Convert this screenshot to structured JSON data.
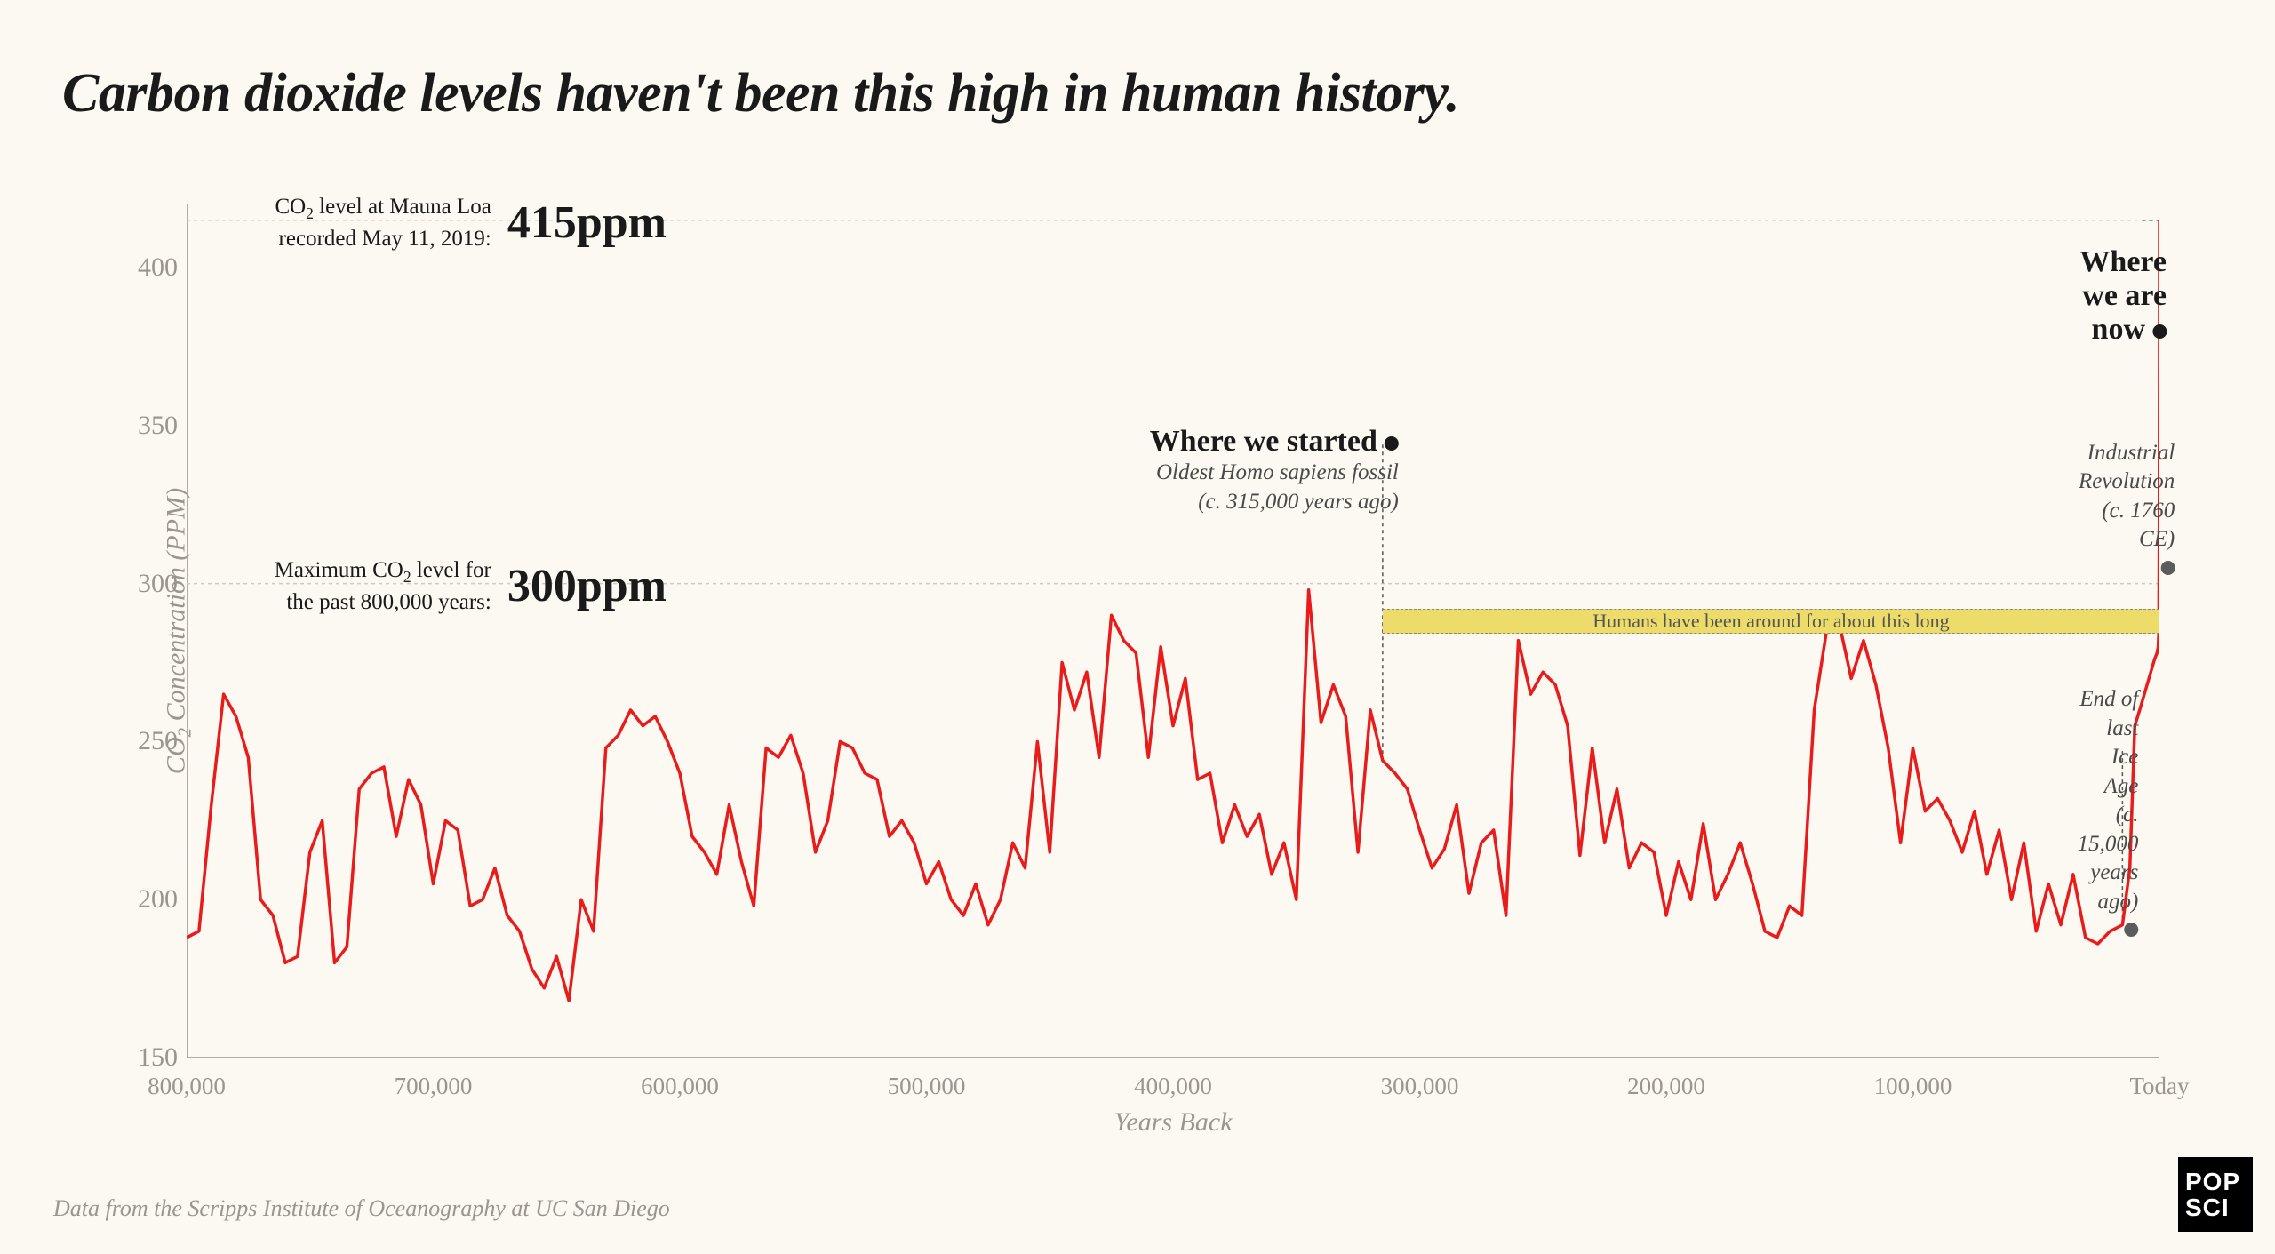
{
  "title": "Carbon dioxide levels haven't been this high in human history.",
  "footer": "Data from the Scripps Institute of Oceanography at UC San Diego",
  "logo": {
    "line1": "POP",
    "line2": "SCI"
  },
  "chart": {
    "type": "line",
    "background_color": "#fcf9f2",
    "line_color": "#e91c1c",
    "line_width": 3.5,
    "grid_color": "#cfcbc2",
    "axis_text_color": "#9a968e",
    "ylabel_html": "CO<sub>2</sub> Concentration (PPM)",
    "xlabel": "Years Back",
    "label_fontsize": 30,
    "xlim": [
      800000,
      0
    ],
    "ylim": [
      150,
      420
    ],
    "yticks": [
      150,
      200,
      250,
      300,
      350,
      400
    ],
    "xticks": [
      {
        "v": 800000,
        "label": "800,000"
      },
      {
        "v": 700000,
        "label": "700,000"
      },
      {
        "v": 600000,
        "label": "600,000"
      },
      {
        "v": 500000,
        "label": "500,000"
      },
      {
        "v": 400000,
        "label": "400,000"
      },
      {
        "v": 300000,
        "label": "300,000"
      },
      {
        "v": 200000,
        "label": "200,000"
      },
      {
        "v": 100000,
        "label": "100,000"
      },
      {
        "v": 0,
        "label": "Today"
      }
    ],
    "reference_lines": [
      {
        "y": 300,
        "dash": "4,4"
      },
      {
        "y": 415,
        "dash": "4,4"
      }
    ],
    "callouts": [
      {
        "id": "415",
        "small_html": "CO<sub>2</sub> level at Mauna Loa<br>recorded May 11, 2019:",
        "big": "415ppm",
        "y": 415
      },
      {
        "id": "300",
        "small_html": "Maximum CO<sub>2</sub> level for<br>the past 800,000 years:",
        "big": "300ppm",
        "y": 300
      }
    ],
    "annotations": {
      "started": {
        "head": "Where we started",
        "sub": "Oldest Homo sapiens fossil",
        "sub2": "(c. 315,000 years ago)",
        "x": 315000,
        "marker_y": 344,
        "line_to_y": 244
      },
      "now": {
        "head": "Where we are now",
        "x": 0,
        "marker_y": 402
      },
      "industrial": {
        "sub": "Industrial Revolution",
        "sub2": "(c. 1760 CE)",
        "x": 260,
        "marker_y": 325,
        "line_to_y": 285
      },
      "iceage": {
        "sub": "End of last Ice Age",
        "sub2": "(c. 15,000 years ago)",
        "x": 15000,
        "marker_y": 247,
        "line_to_y": 192
      }
    },
    "human_band": {
      "text": "Humans have been around for about this long",
      "x_start": 315000,
      "x_end": 0,
      "y": 288,
      "color": "#eddc6a",
      "gap_x": 56000
    },
    "series": [
      [
        800000,
        188
      ],
      [
        795000,
        190
      ],
      [
        790000,
        230
      ],
      [
        785000,
        265
      ],
      [
        780000,
        258
      ],
      [
        775000,
        245
      ],
      [
        770000,
        200
      ],
      [
        765000,
        195
      ],
      [
        760000,
        180
      ],
      [
        755000,
        182
      ],
      [
        750000,
        215
      ],
      [
        745000,
        225
      ],
      [
        740000,
        180
      ],
      [
        735000,
        185
      ],
      [
        730000,
        235
      ],
      [
        725000,
        240
      ],
      [
        720000,
        242
      ],
      [
        715000,
        220
      ],
      [
        710000,
        238
      ],
      [
        705000,
        230
      ],
      [
        700000,
        205
      ],
      [
        695000,
        225
      ],
      [
        690000,
        222
      ],
      [
        685000,
        198
      ],
      [
        680000,
        200
      ],
      [
        675000,
        210
      ],
      [
        670000,
        195
      ],
      [
        665000,
        190
      ],
      [
        660000,
        178
      ],
      [
        655000,
        172
      ],
      [
        650000,
        182
      ],
      [
        645000,
        168
      ],
      [
        640000,
        200
      ],
      [
        635000,
        190
      ],
      [
        630000,
        248
      ],
      [
        625000,
        252
      ],
      [
        620000,
        260
      ],
      [
        615000,
        255
      ],
      [
        610000,
        258
      ],
      [
        605000,
        250
      ],
      [
        600000,
        240
      ],
      [
        595000,
        220
      ],
      [
        590000,
        215
      ],
      [
        585000,
        208
      ],
      [
        580000,
        230
      ],
      [
        575000,
        212
      ],
      [
        570000,
        198
      ],
      [
        565000,
        248
      ],
      [
        560000,
        245
      ],
      [
        555000,
        252
      ],
      [
        550000,
        240
      ],
      [
        545000,
        215
      ],
      [
        540000,
        225
      ],
      [
        535000,
        250
      ],
      [
        530000,
        248
      ],
      [
        525000,
        240
      ],
      [
        520000,
        238
      ],
      [
        515000,
        220
      ],
      [
        510000,
        225
      ],
      [
        505000,
        218
      ],
      [
        500000,
        205
      ],
      [
        495000,
        212
      ],
      [
        490000,
        200
      ],
      [
        485000,
        195
      ],
      [
        480000,
        205
      ],
      [
        475000,
        192
      ],
      [
        470000,
        200
      ],
      [
        465000,
        218
      ],
      [
        460000,
        210
      ],
      [
        455000,
        250
      ],
      [
        450000,
        215
      ],
      [
        445000,
        275
      ],
      [
        440000,
        260
      ],
      [
        435000,
        272
      ],
      [
        430000,
        245
      ],
      [
        425000,
        290
      ],
      [
        420000,
        282
      ],
      [
        415000,
        278
      ],
      [
        410000,
        245
      ],
      [
        405000,
        280
      ],
      [
        400000,
        255
      ],
      [
        395000,
        270
      ],
      [
        390000,
        238
      ],
      [
        385000,
        240
      ],
      [
        380000,
        218
      ],
      [
        375000,
        230
      ],
      [
        370000,
        220
      ],
      [
        365000,
        227
      ],
      [
        360000,
        208
      ],
      [
        355000,
        218
      ],
      [
        350000,
        200
      ],
      [
        345000,
        298
      ],
      [
        340000,
        256
      ],
      [
        335000,
        268
      ],
      [
        330000,
        258
      ],
      [
        325000,
        215
      ],
      [
        320000,
        260
      ],
      [
        315000,
        244
      ],
      [
        310000,
        240
      ],
      [
        305000,
        235
      ],
      [
        300000,
        222
      ],
      [
        295000,
        210
      ],
      [
        290000,
        216
      ],
      [
        285000,
        230
      ],
      [
        280000,
        202
      ],
      [
        275000,
        218
      ],
      [
        270000,
        222
      ],
      [
        265000,
        195
      ],
      [
        260000,
        282
      ],
      [
        255000,
        265
      ],
      [
        250000,
        272
      ],
      [
        245000,
        268
      ],
      [
        240000,
        255
      ],
      [
        235000,
        214
      ],
      [
        230000,
        248
      ],
      [
        225000,
        218
      ],
      [
        220000,
        235
      ],
      [
        215000,
        210
      ],
      [
        210000,
        218
      ],
      [
        205000,
        215
      ],
      [
        200000,
        195
      ],
      [
        195000,
        212
      ],
      [
        190000,
        200
      ],
      [
        185000,
        224
      ],
      [
        180000,
        200
      ],
      [
        175000,
        208
      ],
      [
        170000,
        218
      ],
      [
        165000,
        205
      ],
      [
        160000,
        190
      ],
      [
        155000,
        188
      ],
      [
        150000,
        198
      ],
      [
        145000,
        195
      ],
      [
        140000,
        260
      ],
      [
        135000,
        285
      ],
      [
        130000,
        288
      ],
      [
        125000,
        270
      ],
      [
        120000,
        282
      ],
      [
        115000,
        268
      ],
      [
        110000,
        248
      ],
      [
        105000,
        218
      ],
      [
        100000,
        248
      ],
      [
        95000,
        228
      ],
      [
        90000,
        232
      ],
      [
        85000,
        225
      ],
      [
        80000,
        215
      ],
      [
        75000,
        228
      ],
      [
        70000,
        208
      ],
      [
        65000,
        222
      ],
      [
        60000,
        200
      ],
      [
        55000,
        218
      ],
      [
        50000,
        190
      ],
      [
        45000,
        205
      ],
      [
        40000,
        192
      ],
      [
        35000,
        208
      ],
      [
        30000,
        188
      ],
      [
        25000,
        186
      ],
      [
        20000,
        190
      ],
      [
        15000,
        192
      ],
      [
        12000,
        210
      ],
      [
        10000,
        255
      ],
      [
        8000,
        260
      ],
      [
        5000,
        268
      ],
      [
        2000,
        276
      ],
      [
        1000,
        278
      ],
      [
        500,
        280
      ],
      [
        260,
        285
      ],
      [
        100,
        320
      ],
      [
        50,
        360
      ],
      [
        0,
        415
      ]
    ]
  }
}
